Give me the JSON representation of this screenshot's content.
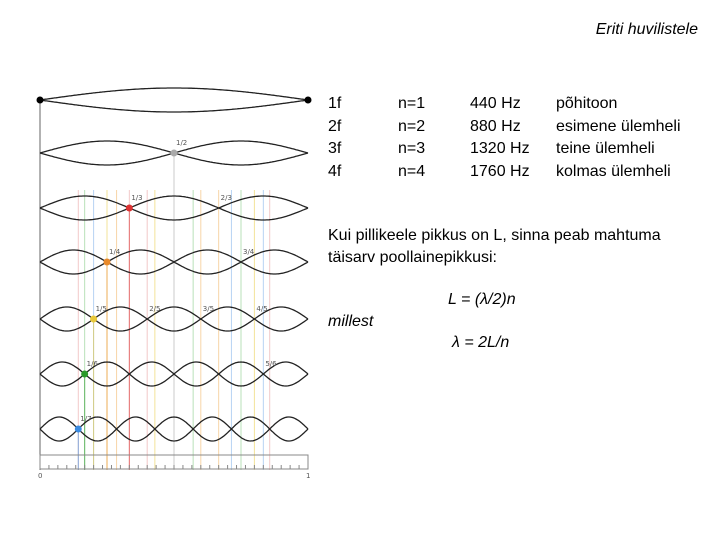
{
  "header": {
    "title": "Eriti huvilistele"
  },
  "table": {
    "rows": [
      [
        "1f",
        "n=1",
        "440 Hz",
        "põhitoon"
      ],
      [
        "2f",
        "n=2",
        "880 Hz",
        "esimene ülemheli"
      ],
      [
        "3f",
        "n=3",
        "1320 Hz",
        "teine ülemheli"
      ],
      [
        "4f",
        "n=4",
        "1760 Hz",
        "kolmas ülemheli"
      ]
    ]
  },
  "text": {
    "paragraph": [
      "Kui pillikeele pikkus on L, sinna peab mahtuma",
      "täisarv poollainepikkusi:"
    ],
    "formula_1": "L = (λ/2)n",
    "connector": "millest",
    "formula_2": "λ = 2L/n"
  },
  "diagram": {
    "node_labels": [
      [
        "1/2"
      ],
      [
        "1/3",
        "2/3"
      ],
      [
        "1/4",
        "3/4"
      ],
      [
        "1/5",
        "2/5",
        "3/5",
        "4/5"
      ],
      [
        "1/6",
        "5/6"
      ],
      [
        "1/7"
      ]
    ],
    "ruler_labels": [
      "0",
      "1"
    ]
  }
}
